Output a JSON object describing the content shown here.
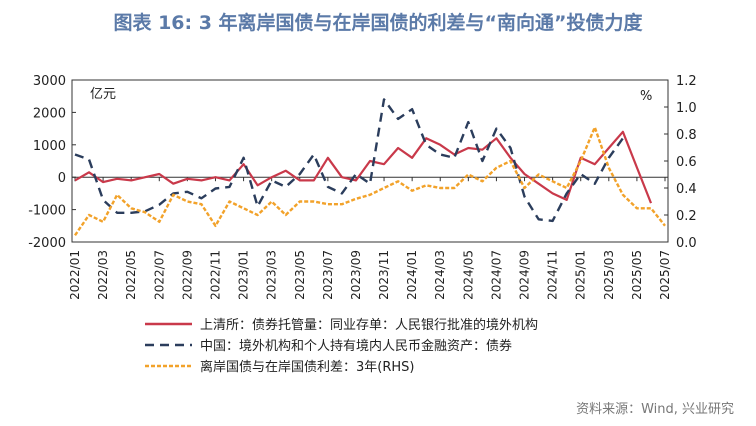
{
  "title": "图表 16: 3 年离岸国债与在岸国债的利差与“南向通”投债力度",
  "source": "资料来源：Wind, 兴业研究",
  "chart_data": {
    "type": "line",
    "y_left_unit": "亿元",
    "y_right_unit": "%",
    "y_left_range": [
      -2000,
      3000
    ],
    "y_right_range": [
      0.0,
      1.2
    ],
    "y_left_ticks": [
      "3000",
      "2000",
      "1000",
      "0",
      "-1000",
      "-2000"
    ],
    "y_right_ticks": [
      "1.2",
      "1.0",
      "0.8",
      "0.6",
      "0.4",
      "0.2",
      "0.0"
    ],
    "x_tick_labels": [
      "2022/01",
      "2022/03",
      "2022/05",
      "2022/07",
      "2022/09",
      "2022/11",
      "2023/01",
      "2023/03",
      "2023/05",
      "2023/07",
      "2023/09",
      "2023/11",
      "2024/01",
      "2024/03",
      "2024/05",
      "2024/07",
      "2024/09",
      "2024/11",
      "2025/01",
      "2025/03",
      "2025/05",
      "2025/07"
    ],
    "months": [
      "2022/01",
      "2022/02",
      "2022/03",
      "2022/04",
      "2022/05",
      "2022/06",
      "2022/07",
      "2022/08",
      "2022/09",
      "2022/10",
      "2022/11",
      "2022/12",
      "2023/01",
      "2023/02",
      "2023/03",
      "2023/04",
      "2023/05",
      "2023/06",
      "2023/07",
      "2023/08",
      "2023/09",
      "2023/10",
      "2023/11",
      "2023/12",
      "2024/01",
      "2024/02",
      "2024/03",
      "2024/04",
      "2024/05",
      "2024/06",
      "2024/07",
      "2024/08",
      "2024/09",
      "2024/10",
      "2024/11",
      "2024/12",
      "2025/01",
      "2025/02",
      "2025/03",
      "2025/04",
      "2025/05",
      "2025/06",
      "2025/07"
    ],
    "series": [
      {
        "name": "上清所：债券托管量：同业存单：人民银行批准的境外机构",
        "axis": "left",
        "color": "#c9394a",
        "style": "solid",
        "values": [
          -100,
          150,
          -150,
          -50,
          -100,
          0,
          100,
          -200,
          -50,
          -100,
          0,
          -100,
          400,
          -250,
          0,
          200,
          -100,
          -100,
          600,
          0,
          -100,
          500,
          400,
          900,
          600,
          1200,
          1000,
          700,
          900,
          850,
          1200,
          600,
          100,
          -200,
          -500,
          -700,
          600,
          400,
          900,
          1400,
          300,
          -800,
          null
        ]
      },
      {
        "name": "中国：境外机构和个人持有境内人民币金融资产：债券",
        "axis": "left",
        "color": "#2b3d5c",
        "style": "dashed",
        "values": [
          700,
          550,
          -700,
          -1100,
          -1100,
          -1050,
          -850,
          -500,
          -450,
          -650,
          -350,
          -300,
          600,
          -900,
          -100,
          -300,
          100,
          700,
          -300,
          -500,
          100,
          -200,
          2400,
          1800,
          2100,
          1000,
          700,
          600,
          1700,
          500,
          1500,
          900,
          -600,
          -1300,
          -1350,
          -500,
          100,
          -200,
          600,
          1200,
          null,
          null,
          null
        ]
      },
      {
        "name": "离岸国债与在岸国债利差：3年(RHS)",
        "axis": "right",
        "color": "#f2a22a",
        "style": "dashed",
        "values": [
          0.05,
          0.2,
          0.15,
          0.35,
          0.25,
          0.22,
          0.15,
          0.35,
          0.3,
          0.28,
          0.12,
          0.3,
          0.25,
          0.2,
          0.3,
          0.2,
          0.3,
          0.3,
          0.28,
          0.28,
          0.32,
          0.35,
          0.4,
          0.45,
          0.38,
          0.42,
          0.4,
          0.4,
          0.5,
          0.45,
          0.55,
          0.6,
          0.4,
          0.5,
          0.45,
          0.4,
          0.6,
          0.85,
          0.55,
          0.35,
          0.25,
          0.25,
          0.12
        ]
      }
    ],
    "legend_position": "bottom"
  }
}
